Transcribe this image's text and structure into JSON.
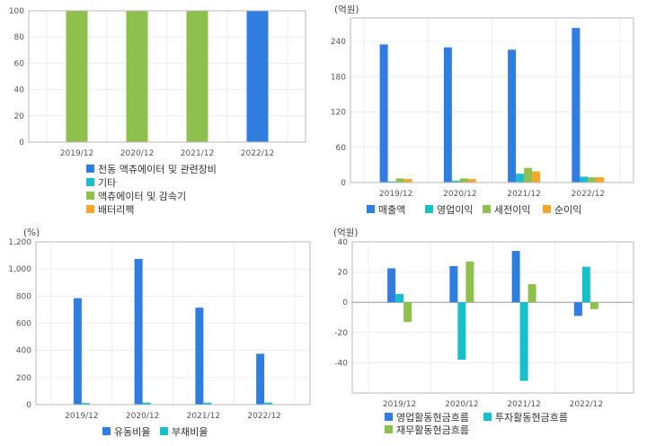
{
  "colors": {
    "blue": "#2f7de1",
    "cyan": "#17bfcb",
    "green": "#8fbf4d",
    "orange": "#f4a72b"
  },
  "chart_data": [
    {
      "id": "segments",
      "type": "bar",
      "unit": "",
      "categories": [
        "2019/12",
        "2020/12",
        "2021/12",
        "2022/12"
      ],
      "ylim": [
        0,
        100
      ],
      "yticks": [
        0,
        20,
        40,
        60,
        80,
        100
      ],
      "ytick_labels": [
        "0",
        "20",
        "40",
        "60",
        "80",
        "100"
      ],
      "bars": [
        {
          "category": "2019/12",
          "value": 100,
          "color": "green"
        },
        {
          "category": "2020/12",
          "value": 100,
          "color": "green"
        },
        {
          "category": "2021/12",
          "value": 100,
          "color": "green"
        },
        {
          "category": "2022/12",
          "value": 100,
          "color": "blue"
        }
      ],
      "legend": [
        {
          "name": "전동 액츄에이터 및 관련장비",
          "color": "blue"
        },
        {
          "name": "기타",
          "color": "cyan"
        },
        {
          "name": "액츄에이터 및 감속기",
          "color": "green"
        },
        {
          "name": "배터리팩",
          "color": "orange"
        }
      ],
      "grid": true
    },
    {
      "id": "income",
      "type": "bar",
      "unit": "(억원)",
      "categories": [
        "2019/12",
        "2020/12",
        "2021/12",
        "2022/12"
      ],
      "ylim": [
        0,
        280
      ],
      "yticks": [
        0,
        60,
        120,
        180,
        240
      ],
      "ytick_labels": [
        "0",
        "60",
        "120",
        "180",
        "240"
      ],
      "series": [
        {
          "name": "매출액",
          "color": "blue",
          "values": [
            235,
            230,
            226,
            263
          ]
        },
        {
          "name": "영업이익",
          "color": "cyan",
          "values": [
            2,
            3,
            15,
            10
          ]
        },
        {
          "name": "세전이익",
          "color": "green",
          "values": [
            7,
            7,
            25,
            9
          ]
        },
        {
          "name": "순이익",
          "color": "orange",
          "values": [
            6,
            6,
            19,
            9
          ]
        }
      ],
      "grid": true
    },
    {
      "id": "ratios",
      "type": "bar",
      "unit": "(%)",
      "categories": [
        "2019/12",
        "2020/12",
        "2021/12",
        "2022/12"
      ],
      "ylim": [
        0,
        1200
      ],
      "yticks": [
        0,
        200,
        400,
        600,
        800,
        1000,
        1200
      ],
      "ytick_labels": [
        "0",
        "200",
        "400",
        "600",
        "800",
        "1,000",
        "1,200"
      ],
      "series": [
        {
          "name": "유동비율",
          "color": "blue",
          "values": [
            785,
            1075,
            715,
            375
          ]
        },
        {
          "name": "부채비율",
          "color": "cyan",
          "values": [
            12,
            15,
            15,
            15
          ]
        }
      ],
      "grid": true
    },
    {
      "id": "cashflow",
      "type": "bar",
      "unit": "(억원)",
      "categories": [
        "2019/12",
        "2020/12",
        "2021/12",
        "2022/12"
      ],
      "ylim": [
        -60,
        40
      ],
      "yticks": [
        -40,
        -20,
        0,
        20,
        40
      ],
      "ytick_labels": [
        "-40",
        "-20",
        "0",
        "20",
        "40"
      ],
      "series": [
        {
          "name": "영업활동현금흐름",
          "color": "blue",
          "values": [
            22.5,
            24,
            34,
            -9
          ]
        },
        {
          "name": "투자활동현금흐름",
          "color": "cyan",
          "values": [
            5.5,
            -38,
            -52,
            23.5
          ]
        },
        {
          "name": "재무활동현금흐름",
          "color": "green",
          "values": [
            -13,
            27,
            12,
            -4.5
          ]
        }
      ],
      "grid": true
    }
  ]
}
